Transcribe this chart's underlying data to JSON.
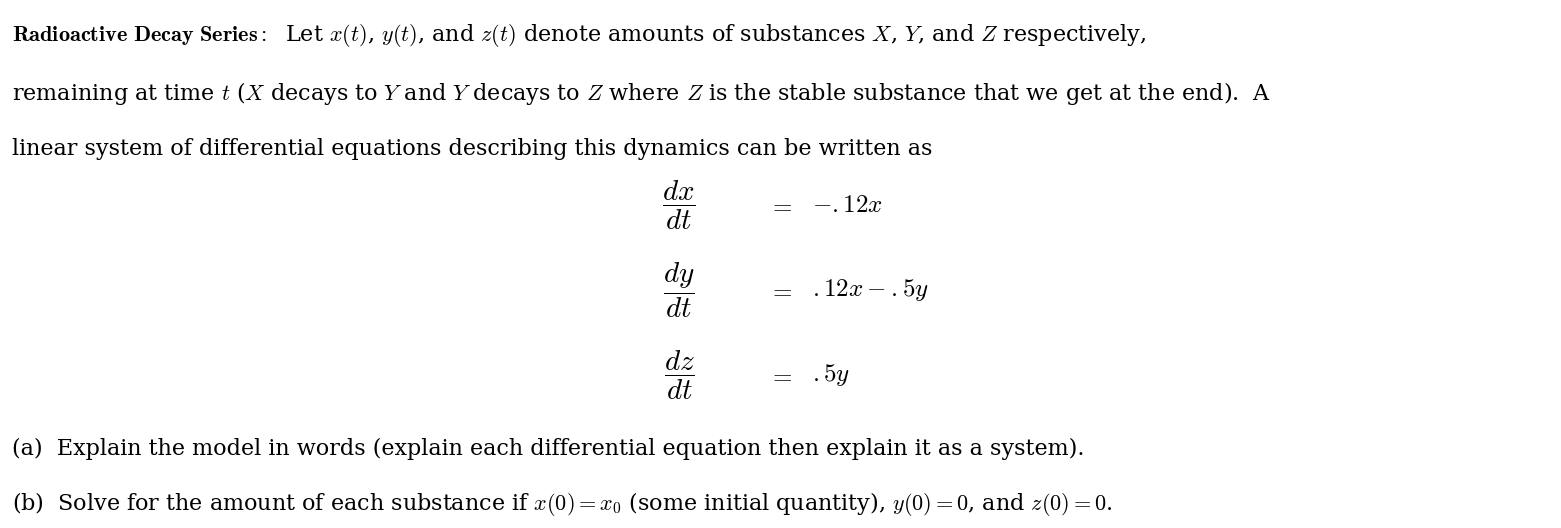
{
  "bg_color": "#ffffff",
  "fig_width": 15.61,
  "fig_height": 5.28,
  "dpi": 100,
  "text_color": "#000000",
  "font_size_text": 16,
  "font_size_eq": 18
}
